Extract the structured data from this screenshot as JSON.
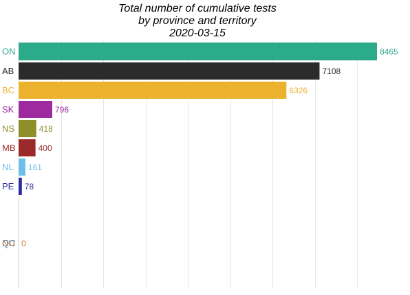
{
  "chart_data": {
    "type": "bar",
    "orientation": "horizontal",
    "title_lines": [
      "Total number of cumulative tests",
      "by province and territory",
      "2020-03-15"
    ],
    "categories": [
      "ON",
      "AB",
      "BC",
      "SK",
      "NS",
      "MB",
      "NL",
      "PE",
      "QC",
      "NU"
    ],
    "values": [
      8465,
      7108,
      6326,
      796,
      418,
      400,
      161,
      78,
      0,
      0
    ],
    "value_labels": [
      "8465",
      "7108",
      "6326",
      "796",
      "418",
      "400",
      "161",
      "78",
      "",
      "0"
    ],
    "colors": [
      "#2bab8a",
      "#2b2b2b",
      "#ecb22e",
      "#9e2aa0",
      "#8f8f2a",
      "#9a2a2a",
      "#6cc0e8",
      "#2c2ca0",
      "#3a8fd0",
      "#c97a3a"
    ],
    "xlim": [
      0,
      8465
    ],
    "grid": true,
    "legend": "none"
  }
}
